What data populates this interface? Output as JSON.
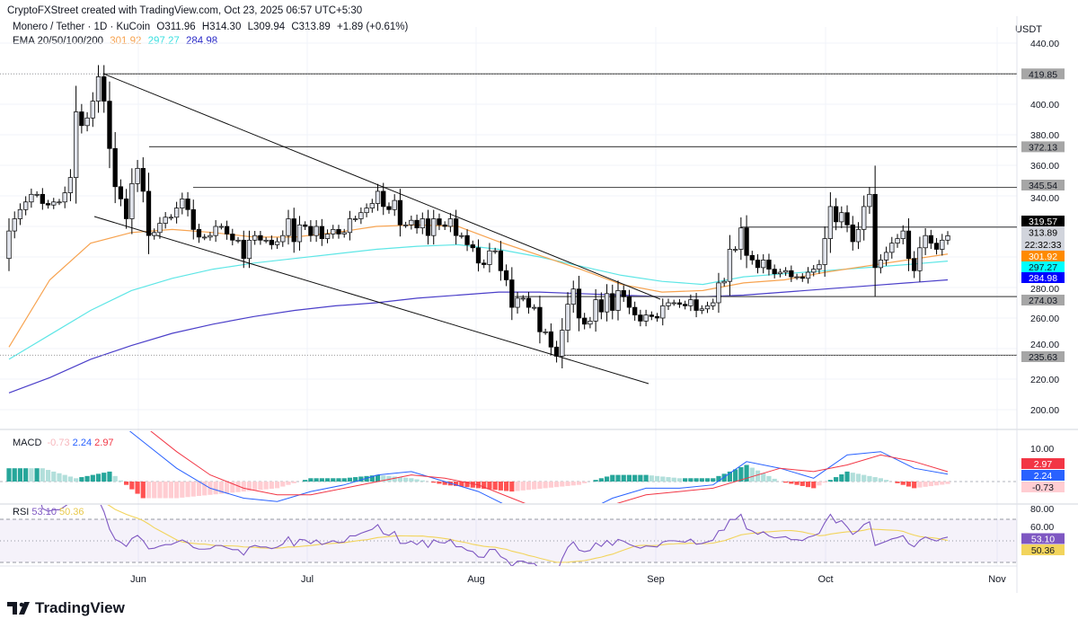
{
  "header": {
    "credit": "CryptoFXStreet created with TradingView.com, Oct 23, 2025 06:57 UTC+5:30",
    "symbol": "Monero / Tether · 1D · KuCoin",
    "open": "O311.96",
    "high": "H314.30",
    "low": "L309.94",
    "close": "C313.89",
    "change": "+1.89 (+0.61%)",
    "ema_label": "EMA 20/50/100/200",
    "ema_values": [
      "301.92",
      "297.27",
      "284.98"
    ],
    "currency": "USDT"
  },
  "colors": {
    "up_fill": "#e0e3eb",
    "down_fill": "#000000",
    "ema_orange": "#f7a350",
    "ema_cyan": "#5ee6e6",
    "ema_blue": "#4b3fc9",
    "macd": "#2962ff",
    "signal": "#f23645",
    "rsi": "#7e57c2",
    "rsi_ma": "#f2d45c",
    "hist_up_strong": "#26a69a",
    "hist_up_weak": "#b2dfdb",
    "hist_dn_strong": "#ff5252",
    "hist_dn_weak": "#ffcdd2"
  },
  "chart_data": {
    "type": "candlestick",
    "y_ticks": [
      440,
      400,
      380,
      360,
      340,
      280,
      260,
      240,
      220,
      200
    ],
    "ylim": [
      200,
      440
    ],
    "x_ticks": [
      "Jun",
      "Jul",
      "Aug",
      "Sep",
      "Oct",
      "Nov"
    ],
    "closes": [
      317,
      325,
      331,
      336,
      341,
      341,
      335,
      334,
      336,
      336,
      342,
      352,
      395,
      386,
      391,
      402,
      418,
      402,
      371,
      346,
      338,
      325,
      348,
      358,
      343,
      314,
      316,
      322,
      326,
      326,
      332,
      338,
      331,
      318,
      313,
      313,
      314,
      320,
      320,
      315,
      311,
      311,
      299,
      311,
      314,
      311,
      311,
      308,
      310,
      314,
      325,
      310,
      321,
      320,
      314,
      320,
      312,
      315,
      318,
      315,
      316,
      325,
      325,
      329,
      332,
      335,
      343,
      333,
      331,
      337,
      321,
      321,
      324,
      319,
      325,
      314,
      325,
      321,
      320,
      325,
      314,
      314,
      308,
      306,
      296,
      295,
      304,
      304,
      291,
      285,
      267,
      273,
      273,
      267,
      267,
      251,
      251,
      241,
      235,
      252,
      269,
      279,
      260,
      256,
      258,
      272,
      264,
      276,
      265,
      278,
      274,
      267,
      262,
      258,
      262,
      261,
      260,
      268,
      270,
      270,
      269,
      268,
      272,
      265,
      266,
      268,
      270,
      283,
      284,
      305,
      305,
      319,
      301,
      298,
      293,
      298,
      292,
      289,
      290,
      291,
      287,
      287,
      286,
      290,
      292,
      295,
      312,
      333,
      323,
      329,
      321,
      310,
      318,
      333,
      341,
      293,
      298,
      303,
      309,
      312,
      317,
      299,
      291,
      306,
      314,
      309,
      305,
      311,
      313.89
    ],
    "first_open": 299,
    "ema_50": [
      241,
      285,
      309,
      316,
      318,
      316,
      313,
      313,
      316,
      320,
      321,
      320,
      310,
      301,
      292,
      282,
      277,
      278,
      283,
      285,
      290,
      294,
      298,
      301.92
    ],
    "ema_100": [
      233,
      249,
      265,
      278,
      286,
      292,
      296,
      299,
      302,
      305,
      307,
      308,
      305,
      300,
      294,
      288,
      284,
      282,
      287,
      289,
      291,
      293,
      295,
      297.27
    ],
    "ema_200": [
      211,
      221,
      233,
      242,
      250,
      256,
      261,
      265,
      268,
      270,
      273,
      275,
      277,
      277,
      276,
      275,
      274,
      274,
      275,
      277,
      279,
      281,
      283,
      284.98
    ],
    "levels": [
      {
        "value": "419.85",
        "style": "gray"
      },
      {
        "value": "372.13",
        "style": "gray"
      },
      {
        "value": "345.54",
        "style": "gray"
      },
      {
        "value": "319.57",
        "style": "black"
      },
      {
        "value": "274.03",
        "style": "gray"
      },
      {
        "value": "235.63",
        "style": "gray"
      }
    ],
    "last_price": "313.89",
    "countdown": "22:32:33",
    "ema_tags": [
      "301.92",
      "297.27",
      "284.98"
    ],
    "macd": {
      "label": "MACD",
      "values": [
        "-0.73",
        "2.24",
        "2.97"
      ],
      "macd_line": [
        22,
        20,
        18,
        20,
        12,
        4,
        -2,
        -5,
        -6,
        -3,
        -1,
        2,
        3,
        0,
        -3,
        -8,
        -11,
        -10,
        -5,
        -2,
        -2,
        -1,
        6,
        4,
        1,
        8,
        9,
        4,
        2.24
      ],
      "signal_line": [
        18,
        16,
        17,
        17,
        17,
        9,
        2,
        -2,
        -4,
        -4,
        -2,
        0,
        2,
        1,
        -1,
        -5,
        -9,
        -9,
        -7,
        -4,
        -3,
        -2,
        1,
        4,
        3,
        5,
        8,
        6,
        2.97
      ],
      "axis_tick": "10.00"
    },
    "rsi": {
      "label": "RSI",
      "values": [
        "53.10",
        "50.36"
      ],
      "axis_ticks": [
        "80.00",
        "60.00"
      ]
    }
  },
  "footer": {
    "brand": "TradingView"
  }
}
